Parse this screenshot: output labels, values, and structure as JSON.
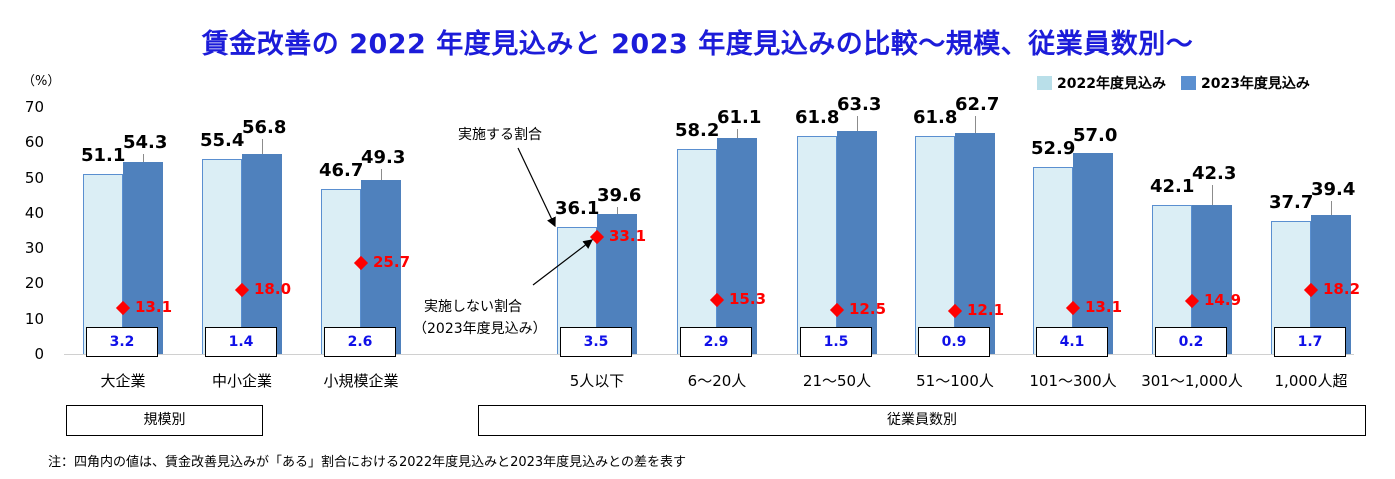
{
  "title": "賃金改善の 2022 年度見込みと 2023 年度見込みの比較～規模、従業員数別～",
  "legend": [
    {
      "label": "2022年度見込み",
      "color": "#b9dfe9"
    },
    {
      "label": "2023年度見込み",
      "color": "#5a8fd0"
    }
  ],
  "y_axis": {
    "unit": "（%）",
    "ticks": [
      "70",
      "60",
      "50",
      "40",
      "30",
      "20",
      "10",
      "0"
    ]
  },
  "annotations": {
    "implement": "実施する割合",
    "not_implement_line1": "実施しない割合",
    "not_implement_line2": "（2023年度見込み）"
  },
  "groups": [
    {
      "label": "規模別"
    },
    {
      "label": "従業員数別"
    }
  ],
  "note": "注：四角内の値は、賃金改善見込みが「ある」割合における2022年度見込みと2023年度見込みとの差を表す",
  "chart_data": {
    "type": "bar",
    "title": "賃金改善の 2022 年度見込みと 2023 年度見込みの比較～規模、従業員数別～",
    "xlabel": "",
    "ylabel": "（%）",
    "ylim": [
      0,
      70
    ],
    "grid": false,
    "legend_position": "top-right",
    "categories": [
      "大企業",
      "中小企業",
      "小規模企業",
      "5人以下",
      "6～20人",
      "21～50人",
      "51～100人",
      "101～300人",
      "301～1,000人",
      "1,000人超"
    ],
    "category_groups": [
      {
        "label": "規模別",
        "categories": [
          "大企業",
          "中小企業",
          "小規模企業"
        ]
      },
      {
        "label": "従業員数別",
        "categories": [
          "5人以下",
          "6～20人",
          "21～50人",
          "51～100人",
          "101～300人",
          "301～1,000人",
          "1,000人超"
        ]
      }
    ],
    "series": [
      {
        "name": "2022年度見込み",
        "type": "bar",
        "color": "#dbeef5",
        "values": [
          51.1,
          55.4,
          46.7,
          36.1,
          58.2,
          61.8,
          61.8,
          52.9,
          42.1,
          37.7
        ]
      },
      {
        "name": "2023年度見込み",
        "type": "bar",
        "color": "#4f81bd",
        "values": [
          54.3,
          56.8,
          49.3,
          39.6,
          61.1,
          63.3,
          62.7,
          57.0,
          42.3,
          39.4
        ]
      },
      {
        "name": "実施しない割合（2023年度見込み）",
        "type": "scatter",
        "marker": "diamond",
        "color": "#ff0000",
        "values": [
          13.1,
          18.0,
          25.7,
          33.1,
          15.3,
          12.5,
          12.1,
          13.1,
          14.9,
          18.2
        ]
      },
      {
        "name": "差（2023年度見込み−2022年度見込み）",
        "type": "box-label",
        "color": "#1010e8",
        "values": [
          "3.2",
          "1.4",
          "2.6",
          "3.5",
          "2.9",
          "1.5",
          "0.9",
          "4.1",
          "0.2",
          "1.7"
        ]
      }
    ],
    "annotations": [
      "実施する割合",
      "実施しない割合（2023年度見込み）"
    ]
  }
}
